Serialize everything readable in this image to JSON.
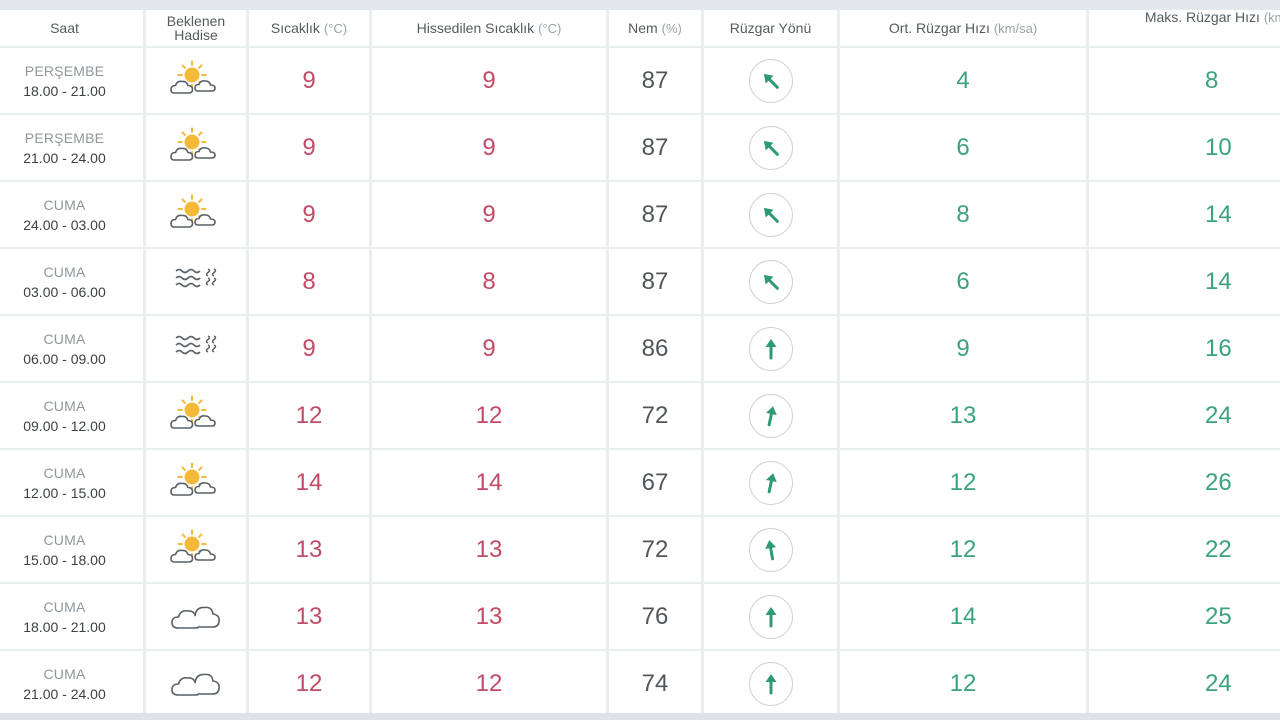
{
  "table": {
    "headers": [
      {
        "label": "Saat",
        "unit": ""
      },
      {
        "label": "Beklenen",
        "label2": "Hadise",
        "unit": ""
      },
      {
        "label": "Sıcaklık",
        "unit": "(°C)"
      },
      {
        "label": "Hissedilen Sıcaklık",
        "unit": "(°C)"
      },
      {
        "label": "Nem",
        "unit": "(%)"
      },
      {
        "label": "Rüzgar Yönü",
        "unit": ""
      },
      {
        "label": "Ort. Rüzgar Hızı",
        "unit": "(km/sa)"
      },
      {
        "label": "Maks. Rüzgar Hızı",
        "unit": "(km/sa)"
      }
    ],
    "rows": [
      {
        "day": "PERŞEMBE",
        "hours": "18.00 - 21.00",
        "weather_icon": "partly-cloudy-icon",
        "temp": "9",
        "feels": "9",
        "humidity": "87",
        "wind_dir": "northwest",
        "avg_wind": "4",
        "max_wind": "8"
      },
      {
        "day": "PERŞEMBE",
        "hours": "21.00 - 24.00",
        "weather_icon": "partly-cloudy-icon",
        "temp": "9",
        "feels": "9",
        "humidity": "87",
        "wind_dir": "northwest",
        "avg_wind": "6",
        "max_wind": "10"
      },
      {
        "day": "CUMA",
        "hours": "24.00 - 03.00",
        "weather_icon": "partly-cloudy-icon",
        "temp": "9",
        "feels": "9",
        "humidity": "87",
        "wind_dir": "northwest",
        "avg_wind": "8",
        "max_wind": "14"
      },
      {
        "day": "CUMA",
        "hours": "03.00 - 06.00",
        "weather_icon": "fog-icon",
        "temp": "8",
        "feels": "8",
        "humidity": "87",
        "wind_dir": "northwest",
        "avg_wind": "6",
        "max_wind": "14"
      },
      {
        "day": "CUMA",
        "hours": "06.00 - 09.00",
        "weather_icon": "fog-icon",
        "temp": "9",
        "feels": "9",
        "humidity": "86",
        "wind_dir": "north",
        "avg_wind": "9",
        "max_wind": "16"
      },
      {
        "day": "CUMA",
        "hours": "09.00 - 12.00",
        "weather_icon": "partly-cloudy-icon",
        "temp": "12",
        "feels": "12",
        "humidity": "72",
        "wind_dir": "north-northeast",
        "avg_wind": "13",
        "max_wind": "24"
      },
      {
        "day": "CUMA",
        "hours": "12.00 - 15.00",
        "weather_icon": "partly-cloudy-icon",
        "temp": "14",
        "feels": "14",
        "humidity": "67",
        "wind_dir": "north-northeast",
        "avg_wind": "12",
        "max_wind": "26"
      },
      {
        "day": "CUMA",
        "hours": "15.00 - 18.00",
        "weather_icon": "partly-cloudy-icon",
        "temp": "13",
        "feels": "13",
        "humidity": "72",
        "wind_dir": "north-northwest",
        "avg_wind": "12",
        "max_wind": "22"
      },
      {
        "day": "CUMA",
        "hours": "18.00 - 21.00",
        "weather_icon": "cloudy-icon",
        "temp": "13",
        "feels": "13",
        "humidity": "76",
        "wind_dir": "north",
        "avg_wind": "14",
        "max_wind": "25"
      },
      {
        "day": "CUMA",
        "hours": "21.00 - 24.00",
        "weather_icon": "cloudy-icon",
        "temp": "12",
        "feels": "12",
        "humidity": "74",
        "wind_dir": "north",
        "avg_wind": "12",
        "max_wind": "24"
      }
    ]
  },
  "colors": {
    "temperature": "#c34a66",
    "humidity": "#50565a",
    "wind": "#3aa27e",
    "arrow": "#2e9a73",
    "sun": "#f5b93a",
    "cloud_stroke": "#5a6166",
    "grid_bg": "#e9eef1"
  }
}
